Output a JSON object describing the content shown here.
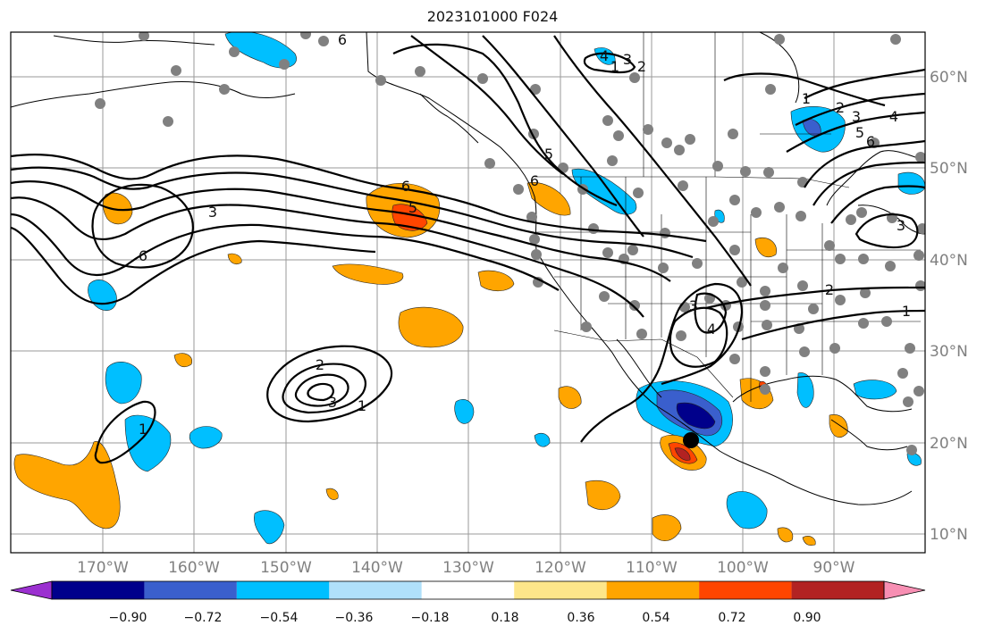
{
  "title": "2023101000 F024",
  "map": {
    "lon_range": [
      -178,
      -78
    ],
    "lat_range": [
      8,
      65
    ],
    "lon_ticks": [
      "170°W",
      "160°W",
      "150°W",
      "140°W",
      "130°W",
      "120°W",
      "110°W",
      "100°W",
      "90°W"
    ],
    "lat_ticks": [
      "10°N",
      "20°N",
      "30°N",
      "40°N",
      "50°N",
      "60°N"
    ],
    "contour_labels": [
      "6",
      "3",
      "6",
      "2",
      "3",
      "1",
      "6",
      "5",
      "5",
      "6",
      "4",
      "3",
      "2",
      "1",
      "1",
      "2",
      "3",
      "4",
      "5",
      "6",
      "2",
      "1",
      "3",
      "4",
      "3",
      "1"
    ],
    "marker": "storm-center"
  },
  "colorbar": {
    "tick_labels": [
      "−0.90",
      "−0.72",
      "−0.54",
      "−0.36",
      "−0.18",
      "0.18",
      "0.36",
      "0.54",
      "0.72",
      "0.90"
    ],
    "colors": [
      "#9b30d0",
      "#00008b",
      "#3a5fcd",
      "#00bfff",
      "#b0e0fa",
      "#ffffff",
      "#fde68a",
      "#ffa500",
      "#ff4500",
      "#b22222",
      "#f78fb3"
    ]
  }
}
